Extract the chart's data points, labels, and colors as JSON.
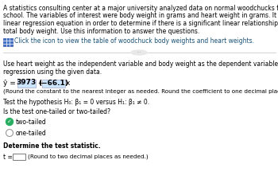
{
  "bg_color": "#ffffff",
  "text_color": "#000000",
  "blue_text_color": "#1a5276",
  "intro_line1": "A statistics consulting center at a major university analyzed data on normal woodchucks for the university's veterinary",
  "intro_line2": "school. The variables of interest were body weight in grams and heart weight in grams. It was desired to develop a",
  "intro_line3": "linear regression equation in order to determine if there is a significant linear relationship between heart weight and",
  "intro_line4": "total body weight. Use this information to answer the questions.",
  "icon_text": "Click the icon to view the table of woodchuck body weights and heart weights.",
  "q1_line1": "Use heart weight as the independent variable and body weight as the dependent variable and fit a simple linear",
  "q1_line2": "regression using the given data.",
  "eq_hat": "ŷ = ",
  "eq_const": "3973",
  "eq_plus": " + ",
  "eq_coef_paren": "( −66.1 )",
  "eq_x": "x",
  "eq_note": "(Round the constant to the nearest integer as needed. Round the coefficient to one decimal place as needed.)",
  "hyp_text": "Test the hypothesis H₀: β₁ = 0 versus H₁: β₁ ≠ 0.",
  "tailed_q": "Is the test one-tailed or two-tailed?",
  "opt1": "two-tailed",
  "opt2": "one-tailed",
  "determine": "Determine the test statistic.",
  "t_eq": "t =",
  "t_note": "(Round to two decimal places as needed.)",
  "checkmark_color": "#27ae60",
  "highlight_color": "#cce5ff",
  "fs_small": 5.5,
  "fs_body": 6.0,
  "fs_eq": 6.5
}
